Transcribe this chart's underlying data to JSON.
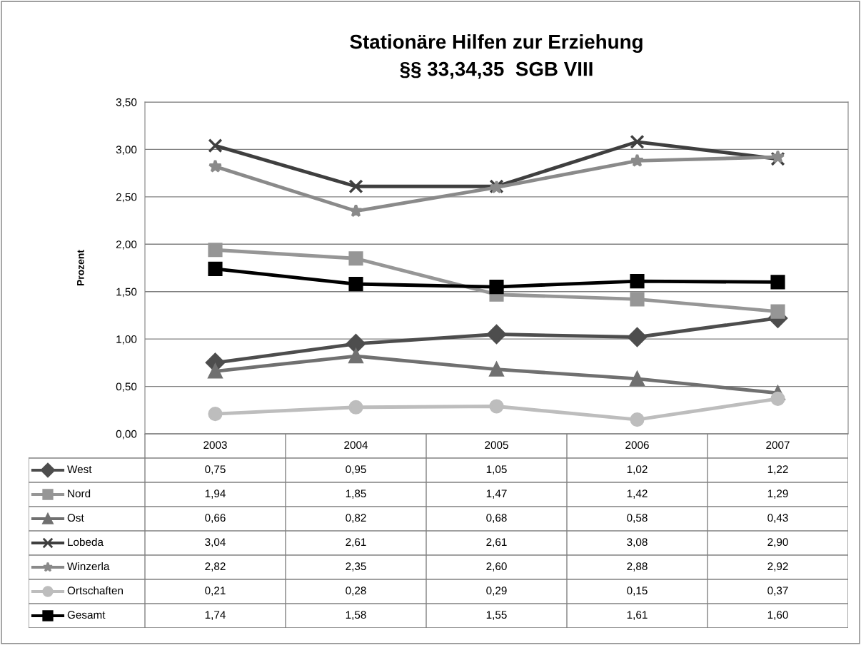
{
  "chart_data": {
    "type": "line",
    "title": "Stationäre Hilfen zur Erziehung\n§§ 33,34,35  SGB VIII",
    "ylabel": "Prozent",
    "categories": [
      "2003",
      "2004",
      "2005",
      "2006",
      "2007"
    ],
    "ylim": [
      0,
      3.5
    ],
    "yticks": [
      {
        "value": 0,
        "label": "0,00"
      },
      {
        "value": 0.5,
        "label": "0,50"
      },
      {
        "value": 1,
        "label": "1,00"
      },
      {
        "value": 1.5,
        "label": "1,50"
      },
      {
        "value": 2,
        "label": "2,00"
      },
      {
        "value": 2.5,
        "label": "2,50"
      },
      {
        "value": 3,
        "label": "3,00"
      },
      {
        "value": 3.5,
        "label": "3,50"
      }
    ],
    "grid": "y",
    "legend": "bottom left",
    "series": [
      {
        "name": "West",
        "color": "#4d4d4d",
        "marker": "diamond",
        "values": [
          0.75,
          0.95,
          1.05,
          1.02,
          1.22
        ],
        "value_labels": [
          "0,75",
          "0,95",
          "1,05",
          "1,02",
          "1,22"
        ]
      },
      {
        "name": "Nord",
        "color": "#969696",
        "marker": "square",
        "values": [
          1.94,
          1.85,
          1.47,
          1.42,
          1.29
        ],
        "value_labels": [
          "1,94",
          "1,85",
          "1,47",
          "1,42",
          "1,29"
        ]
      },
      {
        "name": "Ost",
        "color": "#707070",
        "marker": "triangle",
        "values": [
          0.66,
          0.82,
          0.68,
          0.58,
          0.43
        ],
        "value_labels": [
          "0,66",
          "0,82",
          "0,68",
          "0,58",
          "0,43"
        ]
      },
      {
        "name": "Lobeda",
        "color": "#3f3f3f",
        "marker": "cross",
        "values": [
          3.04,
          2.61,
          2.61,
          3.08,
          2.9
        ],
        "value_labels": [
          "3,04",
          "2,61",
          "2,61",
          "3,08",
          "2,90"
        ]
      },
      {
        "name": "Winzerla",
        "color": "#8a8a8a",
        "marker": "star",
        "values": [
          2.82,
          2.35,
          2.6,
          2.88,
          2.92
        ],
        "value_labels": [
          "2,82",
          "2,35",
          "2,60",
          "2,88",
          "2,92"
        ]
      },
      {
        "name": "Ortschaften",
        "color": "#bdbdbd",
        "marker": "circle",
        "values": [
          0.21,
          0.28,
          0.29,
          0.15,
          0.37
        ],
        "value_labels": [
          "0,21",
          "0,28",
          "0,29",
          "0,15",
          "0,37"
        ]
      },
      {
        "name": "Gesamt",
        "color": "#000000",
        "marker": "square",
        "values": [
          1.74,
          1.58,
          1.55,
          1.61,
          1.6
        ],
        "value_labels": [
          "1,74",
          "1,58",
          "1,55",
          "1,61",
          "1,60"
        ]
      }
    ]
  }
}
